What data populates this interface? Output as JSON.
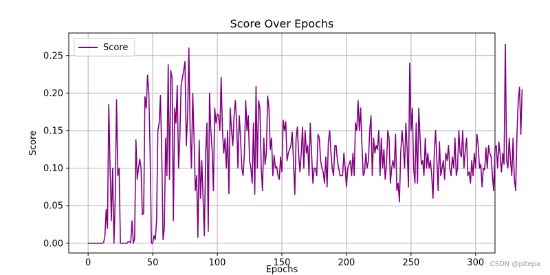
{
  "chart_data": {
    "type": "line",
    "title": "Score Over Epochs",
    "xlabel": "Epochs",
    "ylabel": "Score",
    "xlim": [
      -15,
      315
    ],
    "ylim": [
      -0.013,
      0.28
    ],
    "xticks": [
      0,
      50,
      100,
      150,
      200,
      250,
      300
    ],
    "yticks": [
      0.0,
      0.05,
      0.1,
      0.15,
      0.2,
      0.25
    ],
    "xtick_labels": [
      "0",
      "50",
      "100",
      "150",
      "200",
      "250",
      "300"
    ],
    "ytick_labels": [
      "0.00",
      "0.05",
      "0.10",
      "0.15",
      "0.20",
      "0.25"
    ],
    "grid": true,
    "legend_position": "upper-left",
    "series": [
      {
        "name": "Score",
        "color": "#800080",
        "x_start": 0,
        "x_step": 1,
        "values": [
          0.0,
          0.0,
          0.0,
          0.0,
          0.0,
          0.0,
          0.0,
          0.0,
          0.0,
          0.0,
          0.0,
          0.0,
          0.001,
          0.01,
          0.045,
          0.02,
          0.185,
          0.1,
          0.03,
          0.1,
          0.0,
          0.06,
          0.191,
          0.09,
          0.1,
          0.0,
          0.0,
          0.0,
          0.0,
          0.0,
          0.0,
          0.002,
          0.002,
          0.001,
          0.03,
          0.0,
          0.006,
          0.138,
          0.085,
          0.1,
          0.112,
          0.1,
          0.038,
          0.04,
          0.195,
          0.18,
          0.224,
          0.2,
          0.12,
          0.0,
          0.0,
          0.01,
          0.005,
          0.03,
          0.15,
          0.16,
          0.197,
          0.12,
          0.005,
          0.02,
          0.14,
          0.09,
          0.238,
          0.085,
          0.23,
          0.22,
          0.03,
          0.18,
          0.16,
          0.21,
          0.1,
          0.14,
          0.21,
          0.22,
          0.23,
          0.242,
          0.13,
          0.17,
          0.26,
          0.15,
          0.1,
          0.2,
          0.14,
          0.07,
          0.09,
          0.008,
          0.137,
          0.06,
          0.11,
          0.06,
          0.01,
          0.12,
          0.16,
          0.016,
          0.2,
          0.15,
          0.124,
          0.07,
          0.18,
          0.16,
          0.172,
          0.17,
          0.15,
          0.221,
          0.15,
          0.12,
          0.14,
          0.1,
          0.15,
          0.066,
          0.18,
          0.15,
          0.13,
          0.17,
          0.19,
          0.16,
          0.1,
          0.17,
          0.14,
          0.1,
          0.09,
          0.12,
          0.19,
          0.15,
          0.17,
          0.11,
          0.1,
          0.08,
          0.16,
          0.065,
          0.209,
          0.1,
          0.19,
          0.18,
          0.1,
          0.07,
          0.14,
          0.105,
          0.12,
          0.196,
          0.18,
          0.125,
          0.14,
          0.09,
          0.117,
          0.1,
          0.102,
          0.09,
          0.085,
          0.115,
          0.095,
          0.164,
          0.15,
          0.162,
          0.11,
          0.12,
          0.125,
          0.13,
          0.148,
          0.11,
          0.065,
          0.14,
          0.155,
          0.118,
          0.095,
          0.12,
          0.155,
          0.1,
          0.15,
          0.12,
          0.13,
          0.09,
          0.16,
          0.12,
          0.08,
          0.1,
          0.1,
          0.09,
          0.145,
          0.14,
          0.11,
          0.1,
          0.095,
          0.08,
          0.115,
          0.075,
          0.135,
          0.15,
          0.12,
          0.1,
          0.09,
          0.13,
          0.13,
          0.11,
          0.1,
          0.09,
          0.09,
          0.09,
          0.12,
          0.1,
          0.075,
          0.1,
          0.105,
          0.11,
          0.09,
          0.12,
          0.09,
          0.16,
          0.15,
          0.19,
          0.15,
          0.18,
          0.13,
          0.09,
          0.095,
          0.12,
          0.1,
          0.11,
          0.15,
          0.17,
          0.09,
          0.14,
          0.12,
          0.13,
          0.125,
          0.15,
          0.09,
          0.14,
          0.1,
          0.125,
          0.085,
          0.105,
          0.15,
          0.14,
          0.08,
          0.1,
          0.11,
          0.1,
          0.145,
          0.07,
          0.08,
          0.055,
          0.12,
          0.15,
          0.13,
          0.1,
          0.16,
          0.125,
          0.075,
          0.24,
          0.15,
          0.18,
          0.1,
          0.08,
          0.16,
          0.08,
          0.18,
          0.14,
          0.105,
          0.11,
          0.09,
          0.14,
          0.1,
          0.12,
          0.1,
          0.11,
          0.09,
          0.06,
          0.12,
          0.15,
          0.11,
          0.07,
          0.135,
          0.09,
          0.1,
          0.11,
          0.085,
          0.12,
          0.11,
          0.13,
          0.1,
          0.09,
          0.115,
          0.1,
          0.14,
          0.09,
          0.1,
          0.15,
          0.12,
          0.115,
          0.15,
          0.1,
          0.125,
          0.14,
          0.09,
          0.095,
          0.08,
          0.11,
          0.09,
          0.12,
          0.1,
          0.145,
          0.13,
          0.1,
          0.105,
          0.075,
          0.1,
          0.098,
          0.127,
          0.1,
          0.13,
          0.12,
          0.115,
          0.09,
          0.07,
          0.125,
          0.13,
          0.1,
          0.135,
          0.118,
          0.095,
          0.12,
          0.105,
          0.265,
          0.11,
          0.1,
          0.14,
          0.11,
          0.09,
          0.14,
          0.085,
          0.07,
          0.145,
          0.19,
          0.208,
          0.145,
          0.205
        ]
      }
    ]
  },
  "watermark": {
    "text": "CSDN @pitepa"
  }
}
